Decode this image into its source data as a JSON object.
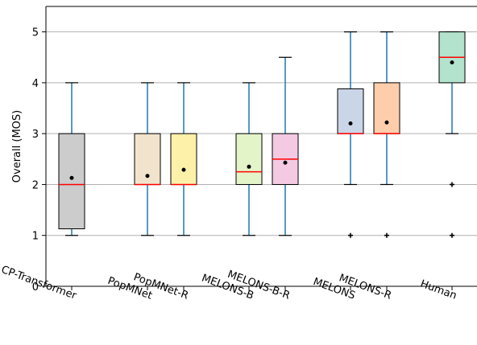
{
  "chart_data": {
    "type": "box",
    "ylabel": "Overall (MOS)",
    "ylim": [
      0,
      5.5
    ],
    "yticks": [
      0,
      1,
      2,
      3,
      4,
      5
    ],
    "grid": "horizontal",
    "categories": [
      "CP-Transformer",
      "PopMNet",
      "PopMNet-R",
      "MELONS-B",
      "MELONS-B-R",
      "MELONS",
      "MELONS-R",
      "Human"
    ],
    "boxes": [
      {
        "label": "CP-Transformer",
        "whisker_low": 1,
        "q1": 1.13,
        "median": 2,
        "q3": 3,
        "whisker_high": 4,
        "mean": 2.13,
        "outliers": [],
        "color": "#cccccc"
      },
      {
        "label": "PopMNet",
        "whisker_low": 1,
        "q1": 2,
        "median": 2,
        "q3": 3,
        "whisker_high": 4,
        "mean": 2.17,
        "outliers": [],
        "color": "#f2e4cc"
      },
      {
        "label": "PopMNet-R",
        "whisker_low": 1,
        "q1": 2,
        "median": 2,
        "q3": 3,
        "whisker_high": 4,
        "mean": 2.29,
        "outliers": [],
        "color": "#fdf1a9"
      },
      {
        "label": "MELONS-B",
        "whisker_low": 1,
        "q1": 2,
        "median": 2.25,
        "q3": 3,
        "whisker_high": 4,
        "mean": 2.35,
        "outliers": [],
        "color": "#e4f4c9"
      },
      {
        "label": "MELONS-B-R",
        "whisker_low": 1,
        "q1": 2,
        "median": 2.5,
        "q3": 3,
        "whisker_high": 4.5,
        "mean": 2.43,
        "outliers": [],
        "color": "#f4cae3"
      },
      {
        "label": "MELONS",
        "whisker_low": 2,
        "q1": 3,
        "median": 3,
        "q3": 3.88,
        "whisker_high": 5,
        "mean": 3.2,
        "outliers": [
          1
        ],
        "color": "#cbd5e8"
      },
      {
        "label": "MELONS-R",
        "whisker_low": 2,
        "q1": 3,
        "median": 3,
        "q3": 4,
        "whisker_high": 5,
        "mean": 3.22,
        "outliers": [
          1
        ],
        "color": "#fdcdac"
      },
      {
        "label": "Human",
        "whisker_low": 3,
        "q1": 4,
        "median": 4.5,
        "q3": 5,
        "whisker_high": 5,
        "mean": 4.4,
        "outliers": [
          2,
          1
        ],
        "color": "#b3e2cd"
      }
    ],
    "colors": {
      "median": "#ff0000",
      "whisker": "#1f77b4",
      "box_edge": "#000000",
      "grid": "#b0b0b0",
      "mean_marker": "#000000"
    }
  }
}
